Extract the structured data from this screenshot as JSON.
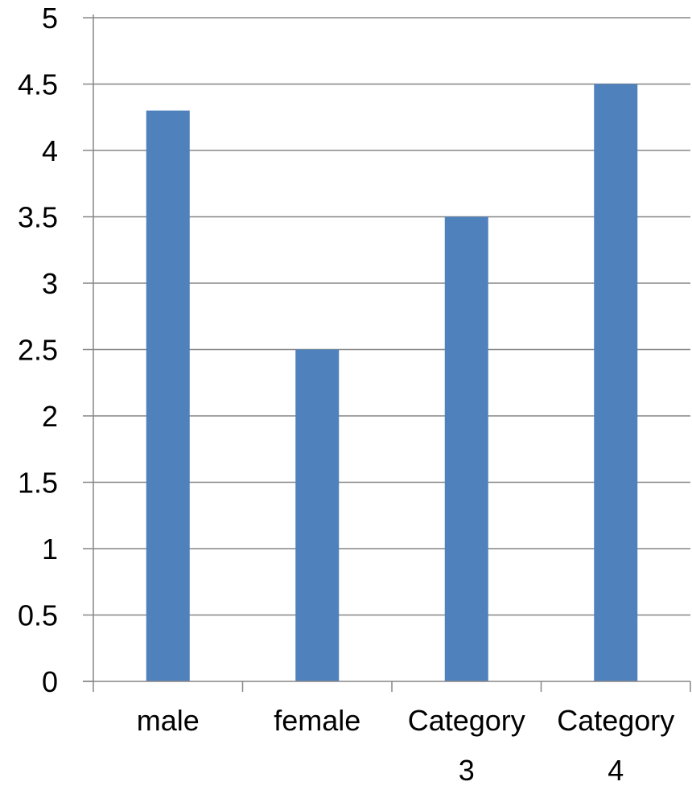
{
  "chart_data": {
    "type": "bar",
    "title": "",
    "xlabel": "",
    "ylabel": "",
    "categories": [
      [
        "male"
      ],
      [
        "female"
      ],
      [
        "Category",
        "3"
      ],
      [
        "Category",
        "4"
      ]
    ],
    "values": [
      4.3,
      2.5,
      3.5,
      4.5
    ],
    "ylim": [
      0,
      5
    ],
    "yticks": [
      0,
      0.5,
      1,
      1.5,
      2,
      2.5,
      3,
      3.5,
      4,
      4.5,
      5
    ],
    "ytick_labels": [
      "0",
      "0.5",
      "1",
      "1.5",
      "2",
      "2.5",
      "3",
      "3.5",
      "4",
      "4.5",
      "5"
    ],
    "grid": true,
    "legend": "none",
    "bar_color": "#4F81BD",
    "grid_color": "#868686"
  }
}
